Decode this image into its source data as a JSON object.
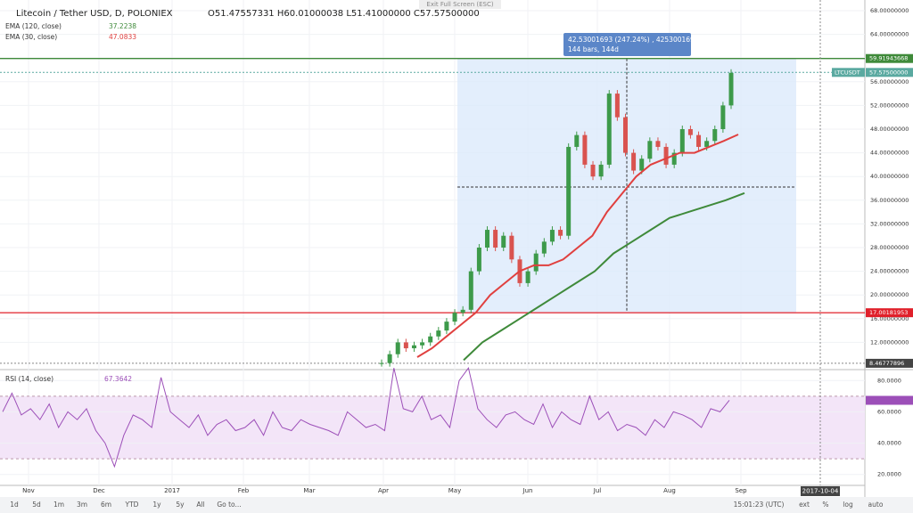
{
  "header": {
    "title": "Litecoin / Tether USD, D, POLONIEX",
    "ohlc": "O51.47557331 H60.01000038 L51.41000000 C57.57500000",
    "exit_fullscreen": "Exit Full Screen (ESC)"
  },
  "indicators": [
    {
      "name": "EMA (120, close)",
      "value": 37.2238,
      "color": "#3f8a3a",
      "values": [
        9,
        12,
        14,
        16,
        18,
        20,
        22,
        24,
        27,
        29,
        31,
        33,
        34,
        35,
        36,
        37.2
      ]
    },
    {
      "name": "EMA (30, close)",
      "value": 47.0833,
      "color": "#e0403f",
      "values": [
        9.5,
        11,
        13,
        15,
        17,
        20,
        22,
        24,
        25,
        25,
        26,
        28,
        30,
        34,
        37,
        40,
        42,
        43,
        44,
        44,
        45,
        46,
        47.1
      ]
    }
  ],
  "price_pane": {
    "closes": [
      8.5,
      10,
      12,
      11,
      11.5,
      12,
      13,
      14,
      15.5,
      17,
      17.5,
      24,
      28,
      31,
      28,
      30,
      26,
      22,
      24,
      27,
      29,
      31,
      30,
      45,
      47,
      42,
      40,
      42,
      54,
      50,
      44,
      41,
      43,
      46,
      45,
      42,
      44,
      48,
      47,
      45,
      46,
      48,
      52,
      57.5
    ],
    "ylim": [
      7.4,
      69.8
    ],
    "yticks": [
      {
        "value": 12,
        "label": "12.00000000"
      },
      {
        "value": 16,
        "label": "16.00000000"
      },
      {
        "value": 20,
        "label": "20.00000000"
      },
      {
        "value": 24,
        "label": "24.00000000"
      },
      {
        "value": 28,
        "label": "28.00000000"
      },
      {
        "value": 32,
        "label": "32.00000000"
      },
      {
        "value": 36,
        "label": "36.00000000"
      },
      {
        "value": 40,
        "label": "40.00000000"
      },
      {
        "value": 44,
        "label": "44.00000000"
      },
      {
        "value": 48,
        "label": "48.00000000"
      },
      {
        "value": 52,
        "label": "52.00000000"
      },
      {
        "value": 56,
        "label": "56.00000000"
      },
      {
        "value": 60,
        "label": "60.00000000"
      },
      {
        "value": 64,
        "label": "64.00000000"
      },
      {
        "value": 68,
        "label": "68.00000000"
      }
    ],
    "hlines": [
      {
        "value": 59.91943668,
        "color": "#3f8a3a"
      },
      {
        "value": 17.00181953,
        "color": "#e0202a"
      }
    ],
    "last_price": {
      "symbol": "LTCUSDT",
      "value": 57.575,
      "label": "57.57500000",
      "color": "#5aa9a0"
    },
    "cursor_price": 8.46777896,
    "measure": {
      "line1": "42.53001693 (247.24%) , 4253001693",
      "line2": "144 bars, 144d"
    }
  },
  "rsi_pane": {
    "name": "RSI (14, close)",
    "value": 67.3642,
    "color": "#9c4fb8",
    "values": [
      60,
      72,
      58,
      62,
      55,
      65,
      50,
      60,
      55,
      62,
      48,
      40,
      25,
      45,
      58,
      55,
      50,
      82,
      60,
      55,
      50,
      58,
      45,
      52,
      55,
      48,
      50,
      55,
      45,
      60,
      50,
      48,
      55,
      52,
      50,
      48,
      45,
      60,
      55,
      50,
      52,
      48,
      88,
      62,
      60,
      70,
      55,
      58,
      50,
      80,
      88,
      62,
      55,
      50,
      58,
      60,
      55,
      52,
      65,
      50,
      60,
      55,
      52,
      70,
      55,
      60,
      48,
      52,
      50,
      45,
      55,
      50,
      60,
      58,
      55,
      50,
      62,
      60,
      67.4
    ],
    "ylim": [
      13,
      87
    ],
    "yticks": [
      {
        "value": 80,
        "label": "80.0000"
      },
      {
        "value": 60,
        "label": "60.0000"
      },
      {
        "value": 40,
        "label": "40.0000"
      },
      {
        "value": 20,
        "label": "20.0000"
      }
    ],
    "band": [
      30,
      70
    ]
  },
  "time_axis": {
    "labels": [
      "Nov",
      "Dec",
      "2017",
      "Feb",
      "Mar",
      "Apr",
      "May",
      "Jun",
      "Jul",
      "Aug",
      "Sep"
    ],
    "cursor_date": "2017-10-04"
  },
  "toolbar": {
    "left": [
      "1d",
      "5d",
      "1m",
      "3m",
      "6m",
      "YTD",
      "1y",
      "5y",
      "All",
      "Go to..."
    ],
    "right": [
      "15:01:23 (UTC)",
      "ext",
      "%",
      "log",
      "auto"
    ]
  }
}
